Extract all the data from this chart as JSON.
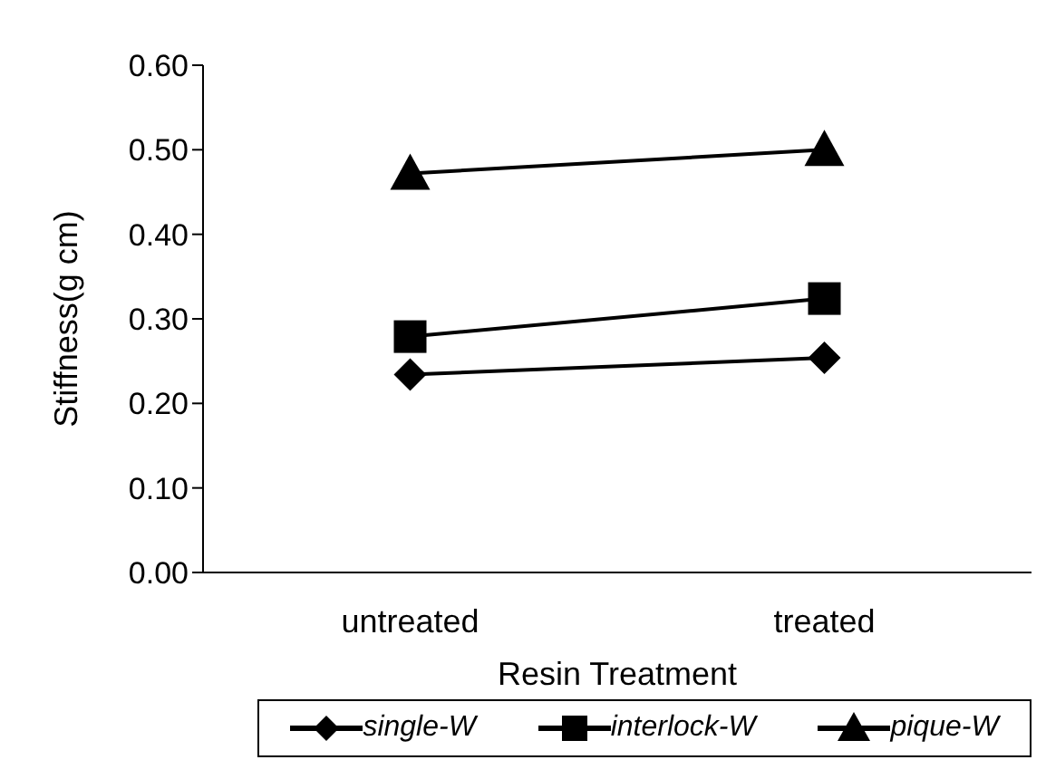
{
  "chart_data": {
    "type": "line",
    "xlabel": "Resin Treatment",
    "ylabel": "Stiffness(g cm)",
    "categories": [
      "untreated",
      "treated"
    ],
    "series": [
      {
        "name": "single-W",
        "color": "#000000",
        "marker": "diamond",
        "values": [
          0.234,
          0.254
        ]
      },
      {
        "name": "interlock-W",
        "color": "#000000",
        "marker": "square",
        "values": [
          0.279,
          0.324
        ]
      },
      {
        "name": "pique-W",
        "color": "#000000",
        "marker": "triangle",
        "values": [
          0.472,
          0.5
        ]
      }
    ],
    "ylim": [
      0,
      0.6
    ],
    "yticks": [
      {
        "value": 0,
        "label": "0.00"
      },
      {
        "value": 0.1,
        "label": "0.10"
      },
      {
        "value": 0.2,
        "label": "0.20"
      },
      {
        "value": 0.3,
        "label": "0.30"
      },
      {
        "value": 0.4,
        "label": "0.40"
      },
      {
        "value": 0.5,
        "label": "0.50"
      },
      {
        "value": 0.6,
        "label": "0.60"
      }
    ],
    "grid": false,
    "legend": "bottom",
    "line_style": "solid"
  }
}
